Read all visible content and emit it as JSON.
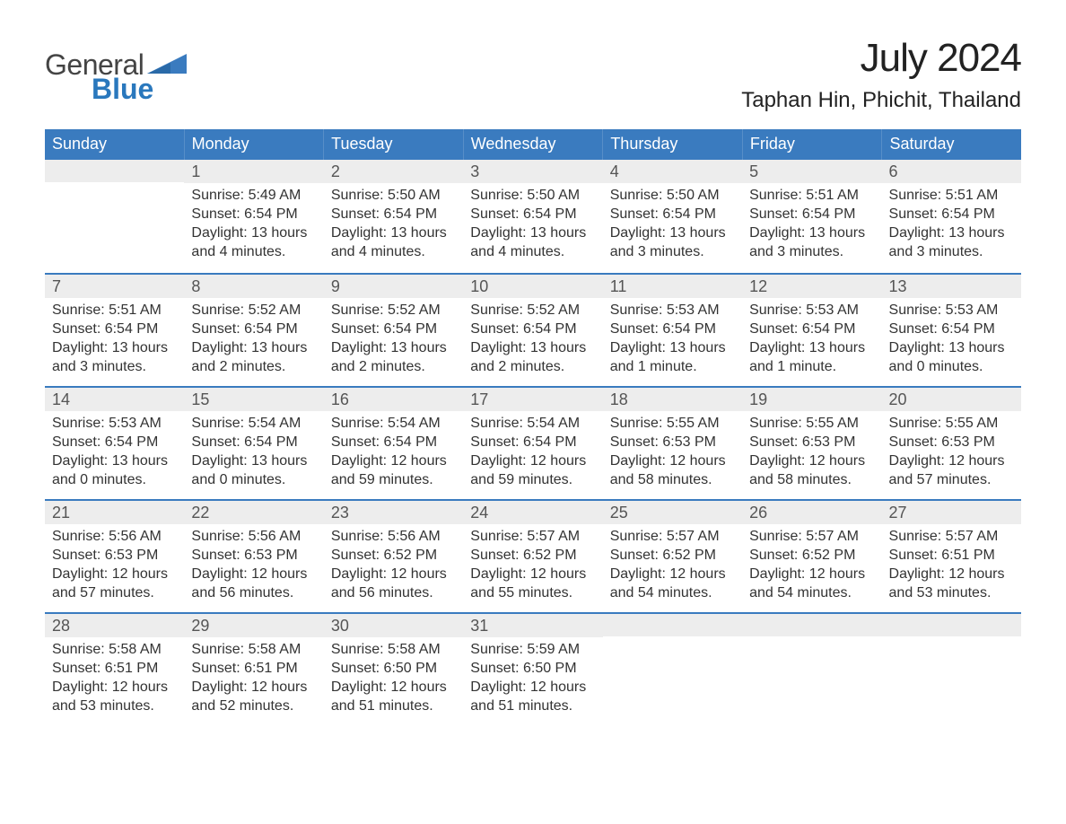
{
  "brand": {
    "word1": "General",
    "word2": "Blue",
    "word1_color": "#555555",
    "word2_color": "#2a78bd",
    "shape_color": "#3a7bbf"
  },
  "title": "July 2024",
  "location": "Taphan Hin, Phichit, Thailand",
  "colors": {
    "header_bg": "#3a7bbf",
    "header_text": "#ffffff",
    "week_divider": "#3a7bbf",
    "daynum_bg": "#ededed",
    "text": "#333333",
    "page_bg": "#ffffff"
  },
  "day_names": [
    "Sunday",
    "Monday",
    "Tuesday",
    "Wednesday",
    "Thursday",
    "Friday",
    "Saturday"
  ],
  "weeks": [
    [
      {
        "n": "",
        "sunrise": "",
        "sunset": "",
        "daylight": ""
      },
      {
        "n": "1",
        "sunrise": "Sunrise: 5:49 AM",
        "sunset": "Sunset: 6:54 PM",
        "daylight": "Daylight: 13 hours and 4 minutes."
      },
      {
        "n": "2",
        "sunrise": "Sunrise: 5:50 AM",
        "sunset": "Sunset: 6:54 PM",
        "daylight": "Daylight: 13 hours and 4 minutes."
      },
      {
        "n": "3",
        "sunrise": "Sunrise: 5:50 AM",
        "sunset": "Sunset: 6:54 PM",
        "daylight": "Daylight: 13 hours and 4 minutes."
      },
      {
        "n": "4",
        "sunrise": "Sunrise: 5:50 AM",
        "sunset": "Sunset: 6:54 PM",
        "daylight": "Daylight: 13 hours and 3 minutes."
      },
      {
        "n": "5",
        "sunrise": "Sunrise: 5:51 AM",
        "sunset": "Sunset: 6:54 PM",
        "daylight": "Daylight: 13 hours and 3 minutes."
      },
      {
        "n": "6",
        "sunrise": "Sunrise: 5:51 AM",
        "sunset": "Sunset: 6:54 PM",
        "daylight": "Daylight: 13 hours and 3 minutes."
      }
    ],
    [
      {
        "n": "7",
        "sunrise": "Sunrise: 5:51 AM",
        "sunset": "Sunset: 6:54 PM",
        "daylight": "Daylight: 13 hours and 3 minutes."
      },
      {
        "n": "8",
        "sunrise": "Sunrise: 5:52 AM",
        "sunset": "Sunset: 6:54 PM",
        "daylight": "Daylight: 13 hours and 2 minutes."
      },
      {
        "n": "9",
        "sunrise": "Sunrise: 5:52 AM",
        "sunset": "Sunset: 6:54 PM",
        "daylight": "Daylight: 13 hours and 2 minutes."
      },
      {
        "n": "10",
        "sunrise": "Sunrise: 5:52 AM",
        "sunset": "Sunset: 6:54 PM",
        "daylight": "Daylight: 13 hours and 2 minutes."
      },
      {
        "n": "11",
        "sunrise": "Sunrise: 5:53 AM",
        "sunset": "Sunset: 6:54 PM",
        "daylight": "Daylight: 13 hours and 1 minute."
      },
      {
        "n": "12",
        "sunrise": "Sunrise: 5:53 AM",
        "sunset": "Sunset: 6:54 PM",
        "daylight": "Daylight: 13 hours and 1 minute."
      },
      {
        "n": "13",
        "sunrise": "Sunrise: 5:53 AM",
        "sunset": "Sunset: 6:54 PM",
        "daylight": "Daylight: 13 hours and 0 minutes."
      }
    ],
    [
      {
        "n": "14",
        "sunrise": "Sunrise: 5:53 AM",
        "sunset": "Sunset: 6:54 PM",
        "daylight": "Daylight: 13 hours and 0 minutes."
      },
      {
        "n": "15",
        "sunrise": "Sunrise: 5:54 AM",
        "sunset": "Sunset: 6:54 PM",
        "daylight": "Daylight: 13 hours and 0 minutes."
      },
      {
        "n": "16",
        "sunrise": "Sunrise: 5:54 AM",
        "sunset": "Sunset: 6:54 PM",
        "daylight": "Daylight: 12 hours and 59 minutes."
      },
      {
        "n": "17",
        "sunrise": "Sunrise: 5:54 AM",
        "sunset": "Sunset: 6:54 PM",
        "daylight": "Daylight: 12 hours and 59 minutes."
      },
      {
        "n": "18",
        "sunrise": "Sunrise: 5:55 AM",
        "sunset": "Sunset: 6:53 PM",
        "daylight": "Daylight: 12 hours and 58 minutes."
      },
      {
        "n": "19",
        "sunrise": "Sunrise: 5:55 AM",
        "sunset": "Sunset: 6:53 PM",
        "daylight": "Daylight: 12 hours and 58 minutes."
      },
      {
        "n": "20",
        "sunrise": "Sunrise: 5:55 AM",
        "sunset": "Sunset: 6:53 PM",
        "daylight": "Daylight: 12 hours and 57 minutes."
      }
    ],
    [
      {
        "n": "21",
        "sunrise": "Sunrise: 5:56 AM",
        "sunset": "Sunset: 6:53 PM",
        "daylight": "Daylight: 12 hours and 57 minutes."
      },
      {
        "n": "22",
        "sunrise": "Sunrise: 5:56 AM",
        "sunset": "Sunset: 6:53 PM",
        "daylight": "Daylight: 12 hours and 56 minutes."
      },
      {
        "n": "23",
        "sunrise": "Sunrise: 5:56 AM",
        "sunset": "Sunset: 6:52 PM",
        "daylight": "Daylight: 12 hours and 56 minutes."
      },
      {
        "n": "24",
        "sunrise": "Sunrise: 5:57 AM",
        "sunset": "Sunset: 6:52 PM",
        "daylight": "Daylight: 12 hours and 55 minutes."
      },
      {
        "n": "25",
        "sunrise": "Sunrise: 5:57 AM",
        "sunset": "Sunset: 6:52 PM",
        "daylight": "Daylight: 12 hours and 54 minutes."
      },
      {
        "n": "26",
        "sunrise": "Sunrise: 5:57 AM",
        "sunset": "Sunset: 6:52 PM",
        "daylight": "Daylight: 12 hours and 54 minutes."
      },
      {
        "n": "27",
        "sunrise": "Sunrise: 5:57 AM",
        "sunset": "Sunset: 6:51 PM",
        "daylight": "Daylight: 12 hours and 53 minutes."
      }
    ],
    [
      {
        "n": "28",
        "sunrise": "Sunrise: 5:58 AM",
        "sunset": "Sunset: 6:51 PM",
        "daylight": "Daylight: 12 hours and 53 minutes."
      },
      {
        "n": "29",
        "sunrise": "Sunrise: 5:58 AM",
        "sunset": "Sunset: 6:51 PM",
        "daylight": "Daylight: 12 hours and 52 minutes."
      },
      {
        "n": "30",
        "sunrise": "Sunrise: 5:58 AM",
        "sunset": "Sunset: 6:50 PM",
        "daylight": "Daylight: 12 hours and 51 minutes."
      },
      {
        "n": "31",
        "sunrise": "Sunrise: 5:59 AM",
        "sunset": "Sunset: 6:50 PM",
        "daylight": "Daylight: 12 hours and 51 minutes."
      },
      {
        "n": "",
        "sunrise": "",
        "sunset": "",
        "daylight": ""
      },
      {
        "n": "",
        "sunrise": "",
        "sunset": "",
        "daylight": ""
      },
      {
        "n": "",
        "sunrise": "",
        "sunset": "",
        "daylight": ""
      }
    ]
  ]
}
